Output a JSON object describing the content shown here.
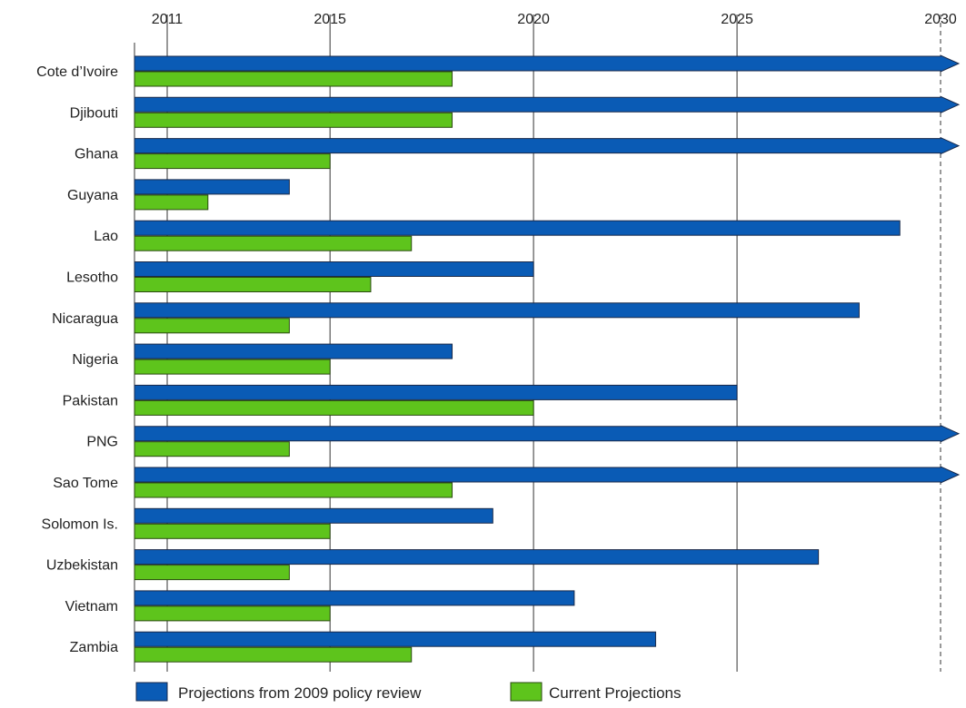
{
  "chart_data": {
    "type": "bar",
    "orientation": "horizontal",
    "title": "",
    "xlabel": "",
    "ylabel": "",
    "xlim": [
      2011,
      2030
    ],
    "x_ticks": [
      "2011",
      "2015",
      "2020",
      "2025",
      "2030"
    ],
    "grid": "vertical lines at ticks",
    "legend_position": "bottom",
    "colors": {
      "series_2009": "#0a5bb5",
      "series_current": "#5ec41c",
      "grid": "#333333"
    },
    "categories": [
      "Cote d’Ivoire",
      "Djibouti",
      "Ghana",
      "Guyana",
      "Lao",
      "Lesotho",
      "Nicaragua",
      "Nigeria",
      "Pakistan",
      "PNG",
      "Sao Tome",
      "Solomon Is.",
      "Uzbekistan",
      "Vietnam",
      "Zambia"
    ],
    "series": [
      {
        "name": "Projections from 2009 policy review",
        "values": [
          2030,
          2030,
          2030,
          2014,
          2029,
          2020,
          2028,
          2018,
          2025,
          2030,
          2030,
          2019,
          2027,
          2021,
          2023
        ],
        "extends_beyond_axis": [
          true,
          true,
          true,
          false,
          false,
          false,
          false,
          false,
          false,
          true,
          true,
          false,
          false,
          false,
          false
        ]
      },
      {
        "name": "Current Projections",
        "values": [
          2018,
          2018,
          2015,
          2012,
          2017,
          2016,
          2014,
          2015,
          2020,
          2014,
          2018,
          2015,
          2014,
          2015,
          2017
        ]
      }
    ]
  }
}
